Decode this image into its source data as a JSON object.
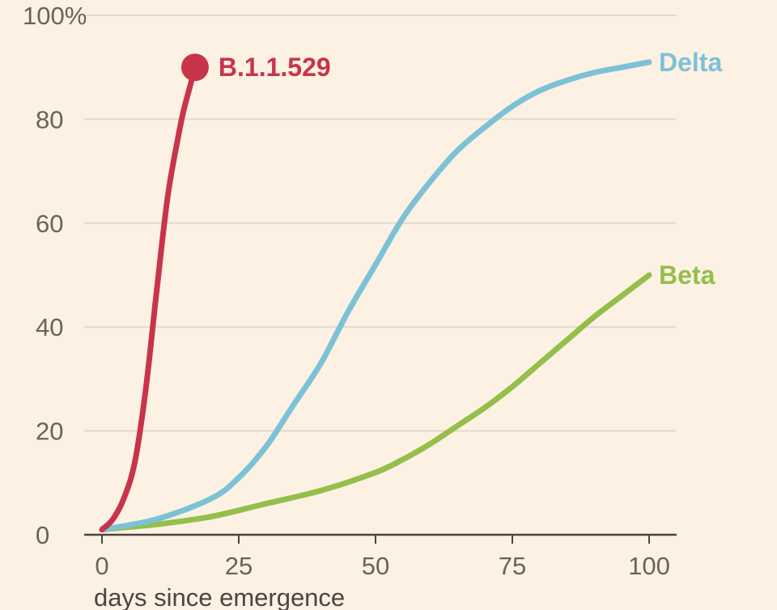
{
  "chart_data": {
    "type": "line",
    "xlabel": "days since emergence",
    "ylabel": "",
    "xlim": [
      0,
      100
    ],
    "ylim": [
      0,
      100
    ],
    "x_ticks": [
      0,
      25,
      50,
      75,
      100
    ],
    "x_tick_labels": [
      "0",
      "25",
      "50",
      "75",
      "100"
    ],
    "y_ticks": [
      0,
      20,
      40,
      60,
      80,
      100
    ],
    "y_tick_labels": [
      "0",
      "20",
      "40",
      "60",
      "80",
      "100%"
    ],
    "grid": true,
    "series": [
      {
        "name": "B.1.1.529",
        "color": "#c8344a",
        "end_marker": true,
        "x": [
          0,
          2,
          4,
          6,
          8,
          10,
          12,
          14,
          15,
          16,
          17
        ],
        "values": [
          1,
          3,
          7,
          14,
          28,
          47,
          65,
          77,
          82,
          86,
          90
        ]
      },
      {
        "name": "Delta",
        "color": "#7cc2d6",
        "end_marker": false,
        "x": [
          0,
          10,
          20,
          25,
          30,
          35,
          40,
          45,
          50,
          55,
          60,
          65,
          70,
          75,
          80,
          85,
          90,
          95,
          100
        ],
        "values": [
          1,
          3,
          7,
          11,
          17,
          25,
          33,
          43,
          52,
          61,
          68,
          74,
          78.5,
          82.5,
          85.5,
          87.5,
          89,
          90,
          91
        ]
      },
      {
        "name": "Beta",
        "color": "#94bf4a",
        "end_marker": false,
        "x": [
          0,
          10,
          20,
          30,
          40,
          50,
          55,
          60,
          65,
          70,
          75,
          80,
          85,
          90,
          95,
          100
        ],
        "values": [
          1,
          2,
          3.5,
          6,
          8.5,
          12,
          14.5,
          17.5,
          21,
          24.5,
          28.5,
          33,
          37.5,
          42,
          46,
          50
        ]
      }
    ]
  }
}
